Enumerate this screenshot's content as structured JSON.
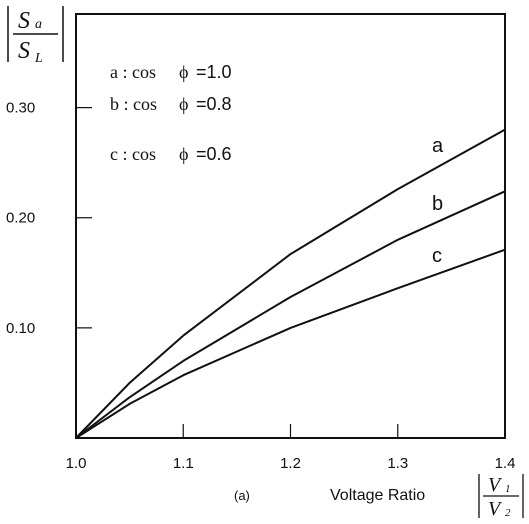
{
  "chart_data": {
    "type": "line",
    "x": [
      1.0,
      1.1,
      1.2,
      1.3,
      1.4
    ],
    "xlim": [
      1.0,
      1.4
    ],
    "ylim": [
      0,
      0.385
    ],
    "xticks": [
      "1.0",
      "1.1",
      "1.2",
      "1.3",
      "1.4"
    ],
    "yticks": [
      {
        "value": 0.1,
        "label": "0.10"
      },
      {
        "value": 0.2,
        "label": "0.20"
      },
      {
        "value": 0.3,
        "label": "0.30"
      }
    ],
    "ylabel": {
      "numerator": "S",
      "numerator_sub": "a",
      "denominator": "S",
      "denominator_sub": "L"
    },
    "xlabel": {
      "text": "Voltage Ratio",
      "numerator": "V",
      "numerator_sub": "1",
      "denominator": "V",
      "denominator_sub": "2"
    },
    "caption": "(a)",
    "series": [
      {
        "name": "a",
        "x": [
          1.0,
          1.05,
          1.1,
          1.2,
          1.3,
          1.4
        ],
        "values": [
          0,
          0.05,
          0.093,
          0.167,
          0.226,
          0.28
        ]
      },
      {
        "name": "b",
        "x": [
          1.0,
          1.05,
          1.1,
          1.2,
          1.3,
          1.4
        ],
        "values": [
          0,
          0.037,
          0.07,
          0.128,
          0.18,
          0.224
        ]
      },
      {
        "name": "c",
        "x": [
          1.0,
          1.05,
          1.1,
          1.2,
          1.3,
          1.4
        ],
        "values": [
          0,
          0.031,
          0.057,
          0.1,
          0.136,
          0.171
        ]
      }
    ],
    "legend": [
      {
        "key": "a : cos",
        "symbol": "ϕ",
        "value": "=1.0"
      },
      {
        "key": "b : cos",
        "symbol": "ϕ",
        "value": "=0.8"
      },
      {
        "key": "c : cos",
        "symbol": "ϕ",
        "value": "=0.6"
      }
    ],
    "grid": false,
    "legend_placement": "top-left"
  }
}
